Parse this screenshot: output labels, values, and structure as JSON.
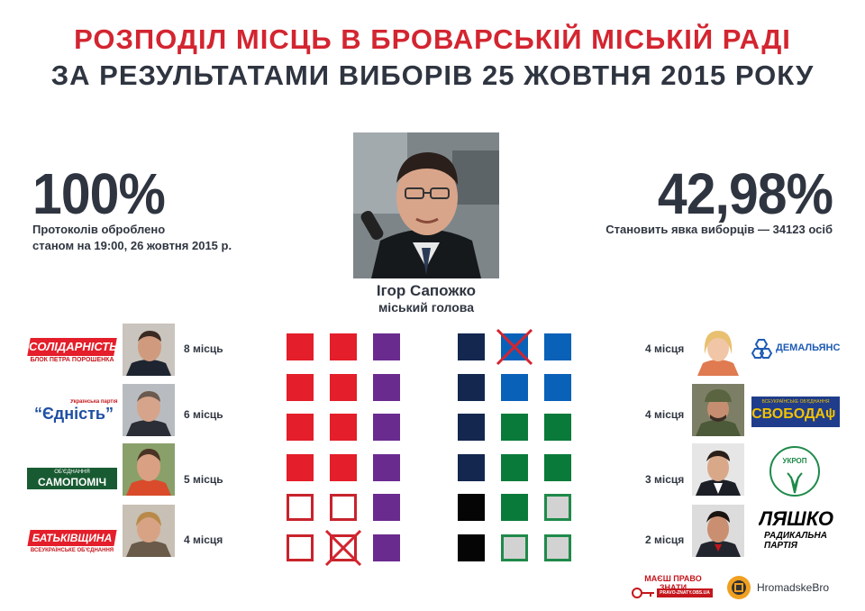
{
  "header": {
    "title_line1": "РОЗПОДІЛ МІСЦЬ В БРОВАРСЬКІЙ МІСЬКІЙ РАДІ",
    "title_line2": "ЗА РЕЗУЛЬТАТАМИ ВИБОРІВ 25 ЖОВТНЯ 2015 РОКУ"
  },
  "stats": {
    "left_value": "100%",
    "left_caption_line1": "Протоколів оброблено",
    "left_caption_line2": "станом на 19:00, 26 жовтня 2015 р.",
    "right_value": "42,98%",
    "right_caption": "Становить явка виборців — 34123 осіб"
  },
  "mayor": {
    "name": "Ігор Сапожко",
    "role": "міський голова"
  },
  "parties_left": [
    {
      "logo_main": "СОЛІДАРНІСТЬ",
      "logo_sub": "БЛОК ПЕТРА ПОРОШЕНКА",
      "seats": "8 місць"
    },
    {
      "logo_top": "Українська партія",
      "logo_main": "“Єдність”",
      "seats": "6 місць"
    },
    {
      "logo_top": "ОБ'ЄДНАННЯ",
      "logo_main": "САМОПОМІЧ",
      "seats": "5 місць"
    },
    {
      "logo_main": "БАТЬКІВЩИНА",
      "logo_sub": "ВСЕУКРАЇНСЬКЕ ОБ'ЄДНАННЯ",
      "seats": "4 місця"
    }
  ],
  "parties_right": [
    {
      "logo_main": "ДЕМАЛЬЯНС",
      "seats": "4 місця"
    },
    {
      "logo_top": "ВСЕУКРАЇНСЬКЕ ОБ'ЄДНАННЯ",
      "logo_main": "СВОБОДА",
      "seats": "4 місця"
    },
    {
      "logo_main": "УКРОП",
      "seats": "3 місця"
    },
    {
      "logo_main": "ЛЯШКО",
      "logo_sub": "РАДИКАЛЬНА ПАРТІЯ",
      "seats": "2 місця"
    }
  ],
  "footer": {
    "logo1_main": "МАЄШ ПРАВО ЗНАТИ",
    "logo1_sub": "PRAVO-ZNATY.OBS.UA",
    "logo2_text": "HromadskeBro"
  },
  "colors": {
    "solidarnist": "#e41e2a",
    "yednist_samopomich": "#6a2b8f",
    "batkivshchyna_empty": "#c8232c",
    "demalians": "#13274f",
    "svoboda": "#0a61b8",
    "ukrop": "#0a7a3a",
    "lyashko": "#050505"
  },
  "seat_grid": {
    "left": [
      [
        "red",
        "red",
        "purple"
      ],
      [
        "red",
        "red",
        "purple"
      ],
      [
        "red",
        "red",
        "purple"
      ],
      [
        "red",
        "red",
        "purple"
      ],
      [
        "empty-red",
        "empty-red",
        "purple"
      ],
      [
        "empty-red",
        "empty-red-crossed",
        "purple"
      ]
    ],
    "right": [
      [
        "navy",
        "blue-crossed",
        "blue"
      ],
      [
        "navy",
        "blue",
        "blue"
      ],
      [
        "navy",
        "green",
        "green"
      ],
      [
        "navy",
        "green",
        "green"
      ],
      [
        "black",
        "green",
        "empty-green"
      ],
      [
        "black",
        "empty-green",
        "empty-green"
      ]
    ]
  }
}
